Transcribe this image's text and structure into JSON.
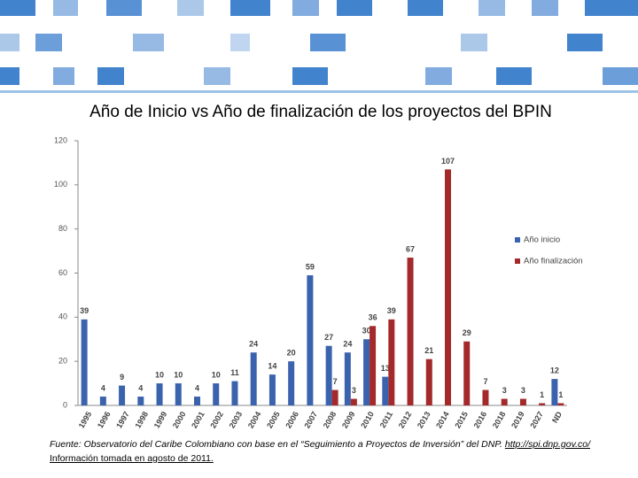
{
  "chart_data": {
    "type": "bar",
    "title": "Año de Inicio vs Año de finalización de los proyectos del BPIN",
    "categories": [
      "1995",
      "1996",
      "1997",
      "1998",
      "1999",
      "2000",
      "2001",
      "2002",
      "2003",
      "2004",
      "2005",
      "2006",
      "2007",
      "2008",
      "2009",
      "2010",
      "2011",
      "2012",
      "2013",
      "2014",
      "2015",
      "2016",
      "2018",
      "2019",
      "2027",
      "ND"
    ],
    "series": [
      {
        "name": "Año inicio",
        "color": "#3b63ad",
        "values": [
          39,
          4,
          9,
          4,
          10,
          10,
          4,
          10,
          11,
          24,
          14,
          20,
          59,
          27,
          24,
          30,
          13,
          null,
          null,
          null,
          null,
          null,
          null,
          null,
          null,
          12
        ]
      },
      {
        "name": "Año finalización",
        "color": "#a3292b",
        "values": [
          null,
          null,
          null,
          null,
          null,
          null,
          null,
          null,
          null,
          null,
          null,
          null,
          null,
          7,
          3,
          36,
          39,
          67,
          21,
          107,
          29,
          7,
          3,
          3,
          1,
          1
        ]
      }
    ],
    "ylim": [
      0,
      120
    ],
    "yticks": [
      0,
      20,
      40,
      60,
      80,
      100,
      120
    ],
    "grid": false,
    "legend": "right",
    "source": "Fuente: Observatorio del Caribe Colombiano con base en el “Seguimiento a Proyectos de Inversión” del DNP.",
    "source_link": "http://spi.dnp.gov.co/",
    "source_date": "Información tomada en agosto de 2011."
  }
}
